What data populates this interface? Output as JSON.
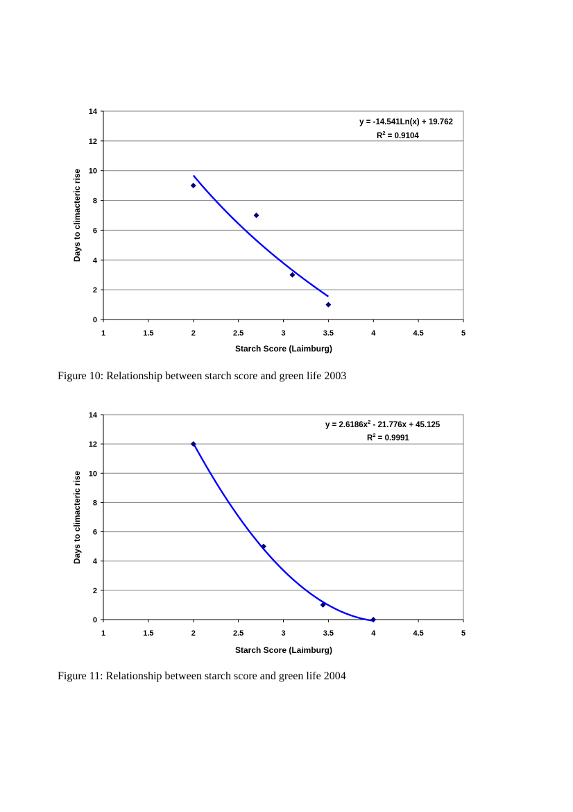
{
  "chart_data": [
    {
      "type": "scatter",
      "xlabel": "Starch Score (Laimburg)",
      "ylabel": "Days to climacteric rise",
      "xlim": [
        1,
        5
      ],
      "ylim": [
        0,
        14
      ],
      "x_ticks": [
        1,
        1.5,
        2,
        2.5,
        3,
        3.5,
        4,
        4.5,
        5
      ],
      "x_tick_labels": [
        "1",
        "1.5",
        "2",
        "2.5",
        "3",
        "3.5",
        "4",
        "4.5",
        "5"
      ],
      "y_ticks": [
        0,
        2,
        4,
        6,
        8,
        10,
        12,
        14
      ],
      "y_tick_labels": [
        "0",
        "2",
        "4",
        "6",
        "8",
        "10",
        "12",
        "14"
      ],
      "grid": "horizontal",
      "points": [
        {
          "x": 2.0,
          "y": 9
        },
        {
          "x": 2.7,
          "y": 7
        },
        {
          "x": 3.1,
          "y": 3
        },
        {
          "x": 3.5,
          "y": 1
        }
      ],
      "trendline": {
        "type": "logarithmic",
        "a": -14.541,
        "b": 19.762,
        "x_range": [
          2.0,
          3.5
        ],
        "equation": "y = -14.541Ln(x) + 19.762",
        "r2_prefix": "R",
        "r2_sup": "2",
        "r2_suffix": " = 0.9104"
      },
      "marker_color": "#000080",
      "line_color": "#0000ff",
      "caption": "Figure 10: Relationship between starch score and green life 2003"
    },
    {
      "type": "scatter",
      "xlabel": "Starch Score (Laimburg)",
      "ylabel": "Days to climacteric rise",
      "xlim": [
        1,
        5
      ],
      "ylim": [
        0,
        14
      ],
      "x_ticks": [
        1,
        1.5,
        2,
        2.5,
        3,
        3.5,
        4,
        4.5,
        5
      ],
      "x_tick_labels": [
        "1",
        "1.5",
        "2",
        "2.5",
        "3",
        "3.5",
        "4",
        "4.5",
        "5"
      ],
      "y_ticks": [
        0,
        2,
        4,
        6,
        8,
        10,
        12,
        14
      ],
      "y_tick_labels": [
        "0",
        "2",
        "4",
        "6",
        "8",
        "10",
        "12",
        "14"
      ],
      "grid": "horizontal",
      "points": [
        {
          "x": 2.0,
          "y": 12
        },
        {
          "x": 2.78,
          "y": 5
        },
        {
          "x": 3.44,
          "y": 1
        },
        {
          "x": 4.0,
          "y": 0
        }
      ],
      "trendline": {
        "type": "polynomial",
        "c2": 2.6186,
        "c1": -21.776,
        "c0": 45.125,
        "x_range": [
          2.0,
          4.0
        ],
        "equation_prefix": "y = 2.6186x",
        "equation_sup": "2",
        "equation_suffix": " - 21.776x + 45.125",
        "r2_prefix": "R",
        "r2_sup": "2",
        "r2_suffix": " = 0.9991"
      },
      "marker_color": "#000080",
      "line_color": "#0000ff",
      "caption": "Figure 11: Relationship between starch score and green life 2004"
    }
  ]
}
